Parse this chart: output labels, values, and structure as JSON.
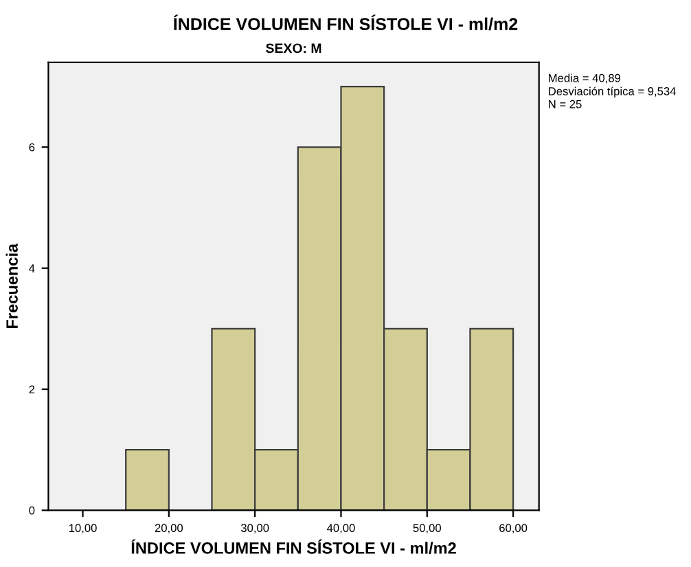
{
  "chart_data": {
    "type": "histogram",
    "title": "ÍNDICE VOLUMEN FIN SÍSTOLE VI - ml/m2",
    "subtitle": "SEXO: M",
    "xlabel": "ÍNDICE VOLUMEN FIN SÍSTOLE VI - ml/m2",
    "ylabel": "Frecuencia",
    "bins": [
      15,
      20,
      25,
      30,
      35,
      40,
      45,
      50,
      55,
      60
    ],
    "values": [
      1,
      0,
      3,
      1,
      6,
      7,
      3,
      1,
      3
    ],
    "color": "#d3ce96",
    "xlim": [
      6,
      63
    ],
    "ylim": [
      0,
      7.4
    ],
    "xticks": [
      {
        "value": 10,
        "label": "10,00"
      },
      {
        "value": 20,
        "label": "20,00"
      },
      {
        "value": 30,
        "label": "30,00"
      },
      {
        "value": 40,
        "label": "40,00"
      },
      {
        "value": 50,
        "label": "50,00"
      },
      {
        "value": 60,
        "label": "60,00"
      }
    ],
    "yticks": [
      0,
      2,
      4,
      6
    ],
    "annotations": [
      "Media = 40,89",
      "Desviación típica = 9,534",
      "N = 25"
    ],
    "grid": false,
    "legend": false
  }
}
